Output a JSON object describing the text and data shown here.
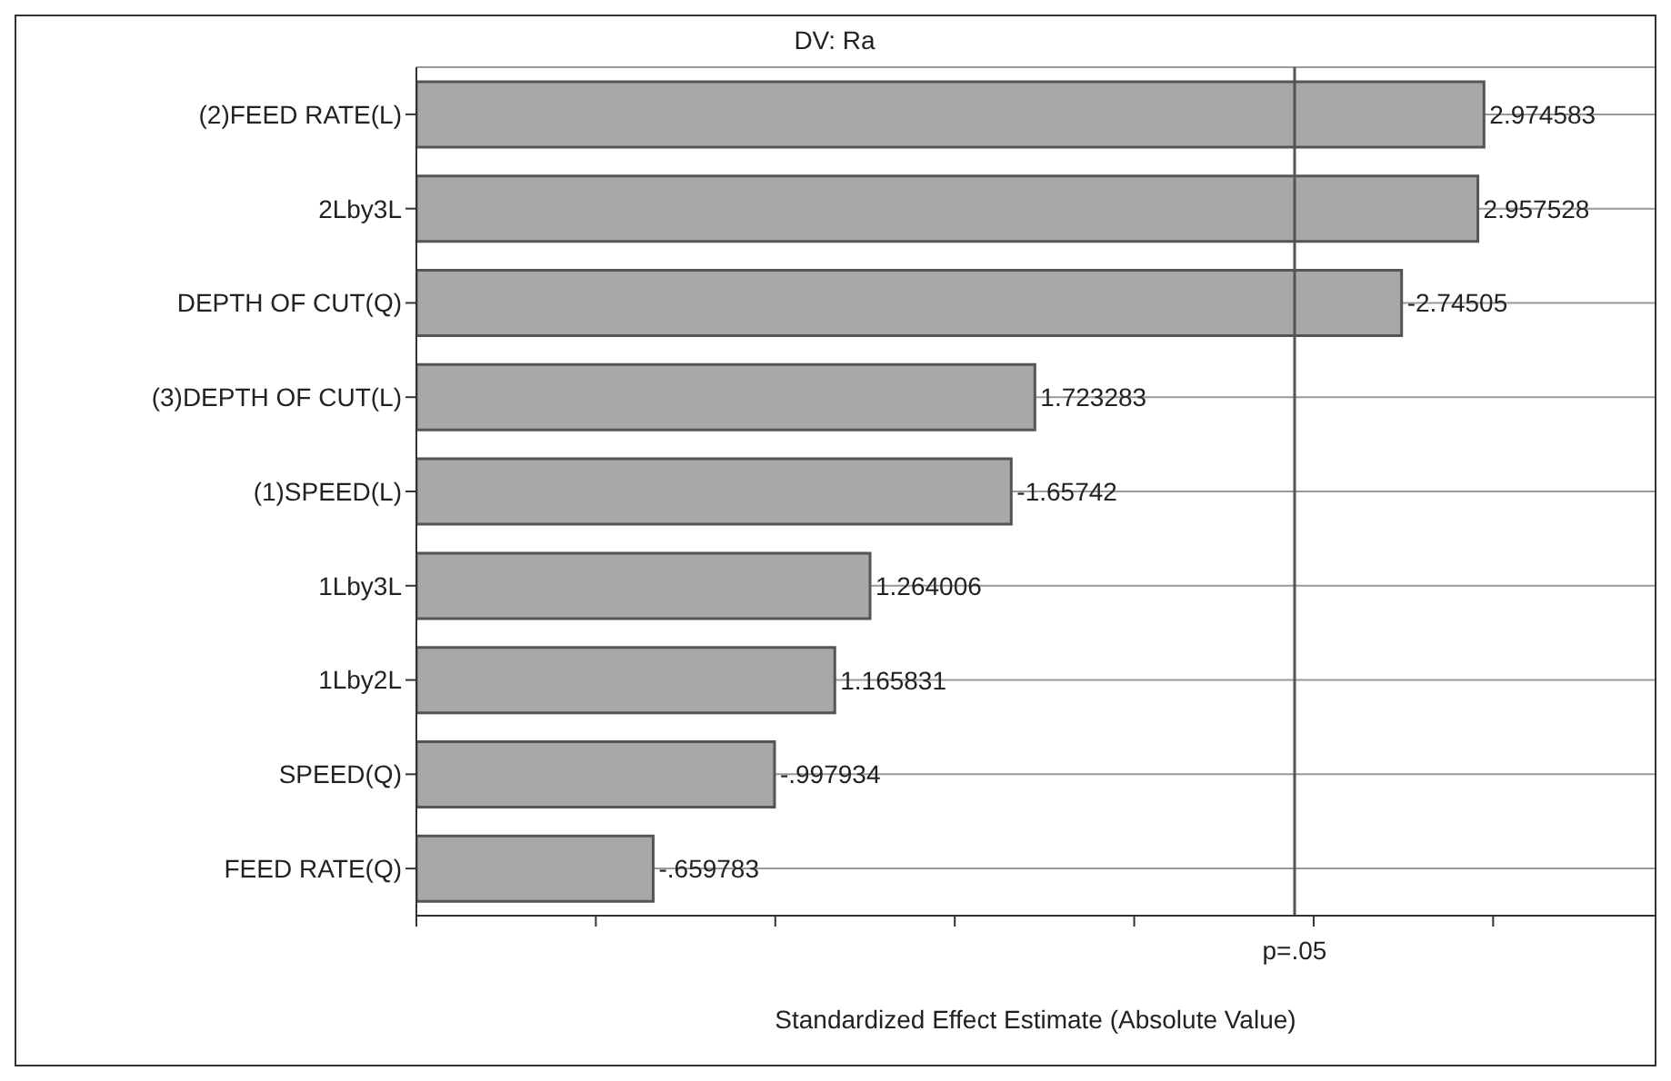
{
  "chart_data": {
    "type": "bar",
    "orientation": "horizontal",
    "title": "DV: Ra",
    "xlabel": "Standardized Effect Estimate (Absolute Value)",
    "categories": [
      "(2)FEED RATE(L)",
      "2Lby3L",
      "DEPTH OF CUT(Q)",
      "(3)DEPTH OF CUT(L)",
      "(1)SPEED(L)",
      "1Lby3L",
      "1Lby2L",
      "SPEED(Q)",
      "FEED RATE(Q)"
    ],
    "values": [
      2.974583,
      2.957528,
      2.74505,
      1.723283,
      1.65742,
      1.264006,
      1.165831,
      0.997934,
      0.659783
    ],
    "value_labels": [
      "2.974583",
      "2.957528",
      null,
      "1.723283",
      null,
      "1.264006",
      "1.165831",
      null,
      null
    ],
    "annotations": [
      {
        "text": "-2.74505",
        "x": 2.74505,
        "y": "DEPTH OF CUT(Q)"
      },
      {
        "text": "-1.65742",
        "x": 1.65742,
        "y": "(1)SPEED(L)"
      },
      {
        "text": "-.997934",
        "x": 0.997934,
        "y": "SPEED(Q)"
      },
      {
        "text": "-.659783",
        "x": 0.659783,
        "y": "FEED RATE(Q)"
      }
    ],
    "color": "#a8a8a8",
    "xlim": [
      0,
      3.45
    ],
    "xticks": [
      {
        "value": 0,
        "label": null
      },
      {
        "value": 0.5,
        "label": null
      },
      {
        "value": 1,
        "label": null
      },
      {
        "value": 1.5,
        "label": null
      },
      {
        "value": 2,
        "label": null
      },
      {
        "value": 2.5,
        "label": null
      },
      {
        "value": 3,
        "label": null
      }
    ],
    "ref_lines": [
      {
        "axis": "x",
        "value": 2.446912,
        "label": "p=.05",
        "color": "#555555"
      }
    ],
    "grid": "y"
  }
}
